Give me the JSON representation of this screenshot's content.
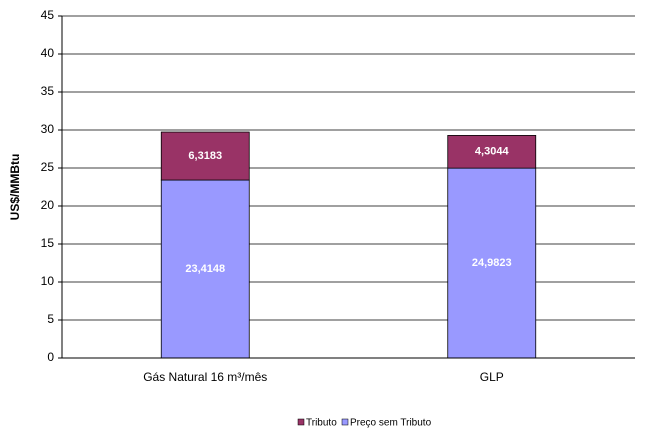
{
  "chart_data": {
    "type": "stacked-bar",
    "y_label": "US$/MMBtu",
    "categories": [
      "Gás Natural 16 m³/mês",
      "GLP"
    ],
    "series": [
      {
        "name": "Preço sem Tributo",
        "color": "#9999ff",
        "values": [
          23.4148,
          24.9823
        ],
        "value_labels": [
          "23,4148",
          "24,9823"
        ]
      },
      {
        "name": "Tributo",
        "color": "#993366",
        "values": [
          6.3183,
          4.3044
        ],
        "value_labels": [
          "6,3183",
          "4,3044"
        ]
      }
    ],
    "ylim": [
      0,
      45
    ],
    "yticks": [
      0,
      5,
      10,
      15,
      20,
      25,
      30,
      35,
      40,
      45
    ],
    "grid": true,
    "legend": "bottom"
  }
}
